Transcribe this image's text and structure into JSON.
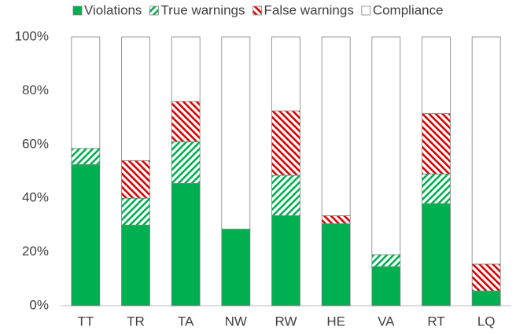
{
  "chart_data": {
    "type": "stacked_bar_100",
    "categories": [
      "TT",
      "TR",
      "TA",
      "NW",
      "RW",
      "HE",
      "VA",
      "RT",
      "LQ"
    ],
    "series": [
      {
        "name": "Violations",
        "color": "#00b050",
        "fill": "solid",
        "values": [
          52.5,
          30,
          45.5,
          28.5,
          33.5,
          30.5,
          14.5,
          38,
          5.5
        ]
      },
      {
        "name": "True warnings",
        "color": "#00b050",
        "fill": "hatch-down",
        "values": [
          6,
          10,
          15.5,
          0,
          15,
          0,
          4.5,
          11,
          0
        ]
      },
      {
        "name": "False warnings",
        "color": "#e00000",
        "fill": "hatch-up",
        "values": [
          0,
          14,
          15,
          0,
          24,
          3,
          0,
          22.5,
          10
        ]
      },
      {
        "name": "Compliance",
        "color": "#ffffff",
        "fill": "solid",
        "values": [
          41.5,
          46,
          24,
          71.5,
          27.5,
          66.5,
          81,
          28.5,
          84.5
        ]
      }
    ],
    "ylim": [
      0,
      100
    ],
    "yticks": [
      {
        "value": 0,
        "label": "0%"
      },
      {
        "value": 20,
        "label": "20%"
      },
      {
        "value": 40,
        "label": "40%"
      },
      {
        "value": 60,
        "label": "60%"
      },
      {
        "value": 80,
        "label": "80%"
      },
      {
        "value": 100,
        "label": "100%"
      }
    ],
    "grid": false,
    "legend": "top"
  }
}
